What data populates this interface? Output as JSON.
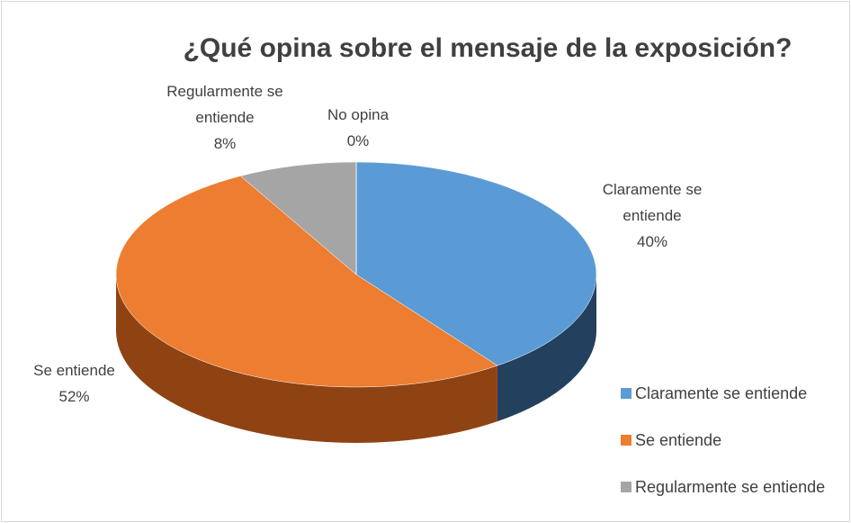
{
  "chart_data": {
    "type": "pie3d",
    "title": "¿Qué opina sobre el mensaje de la exposición?",
    "categories": [
      "Claramente se entiende",
      "Se entiende",
      "Regularmente se entiende",
      "No opina"
    ],
    "values": [
      40,
      52,
      8,
      0
    ],
    "value_labels": [
      "40%",
      "52%",
      "8%",
      "0%"
    ],
    "colors": [
      "#5b9bd5",
      "#ed7d31",
      "#a5a5a5",
      "#ffc000"
    ],
    "side_colors": [
      "#23405e",
      "#8f4313",
      "#6b6b6b",
      "#a07800"
    ],
    "legend": "right"
  }
}
